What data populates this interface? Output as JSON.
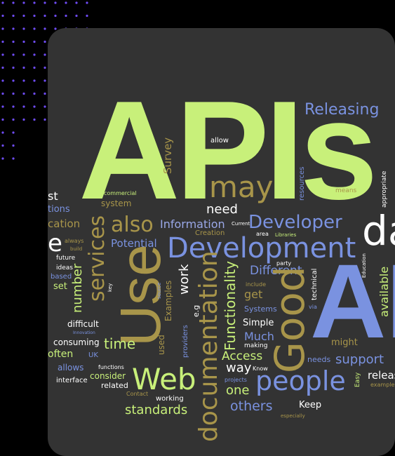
{
  "colors": {
    "background": "#000000",
    "card": "#333333",
    "dots": "#6f4cf5",
    "green": "#c8f07a",
    "blue": "#7a92e0",
    "olive": "#a8954a",
    "white": "#ffffff",
    "lightblue": "#9aa8e8"
  },
  "cloud": {
    "apis": "APIs",
    "releasing": "Releasing",
    "allow": "allow",
    "survey": "Survey",
    "may": "may",
    "commercial": "commercial",
    "system": "system",
    "need": "need",
    "also": "also",
    "information": "Information",
    "current": "Current",
    "developer": "Developer",
    "creation": "Creation",
    "area": "area",
    "libraries": "Libraries",
    "potential": "Potential",
    "development": "Development",
    "services": "services",
    "use": "Use",
    "number": "number",
    "work": "work",
    "documentation": "documentation",
    "functionality": "Functionality",
    "different": "Different",
    "good": "Good",
    "get": "get",
    "systems": "Systems",
    "simple": "Simple",
    "much": "Much",
    "making": "making",
    "access": "Access",
    "way": "way",
    "know": "Know",
    "time": "time",
    "web": "Web",
    "people": "people",
    "one": "one",
    "others": "others",
    "standards": "standards",
    "keep": "Keep",
    "especially": "especially",
    "consuming": "consuming",
    "difficult": "difficult",
    "set": "set",
    "based": "based",
    "ideas": "ideas",
    "future": "future",
    "build": "build",
    "always": "always",
    "innovation": "Innovation",
    "uk": "UK",
    "consider": "consider",
    "related": "related",
    "interface": "interface",
    "allows": "allows",
    "often": "often",
    "functions": "functions",
    "contact": "Contact",
    "working": "working",
    "providers": "providers",
    "used": "used",
    "examples": "Examples",
    "eg": "e.g",
    "source": "source",
    "key": "key",
    "projects": "projects",
    "means": "means",
    "resources": "resources",
    "appropriate": "appropriate",
    "da": "da",
    "ap": "AP",
    "party": "party",
    "include": "include",
    "via": "via",
    "technical": "technical",
    "education": "Education",
    "available": "available",
    "might": "might",
    "needs": "needs",
    "support": "support",
    "easy": "Easy",
    "releas": "releas",
    "example": "example",
    "st": "st",
    "tions": "tions",
    "cation": "cation",
    "e": "e"
  }
}
